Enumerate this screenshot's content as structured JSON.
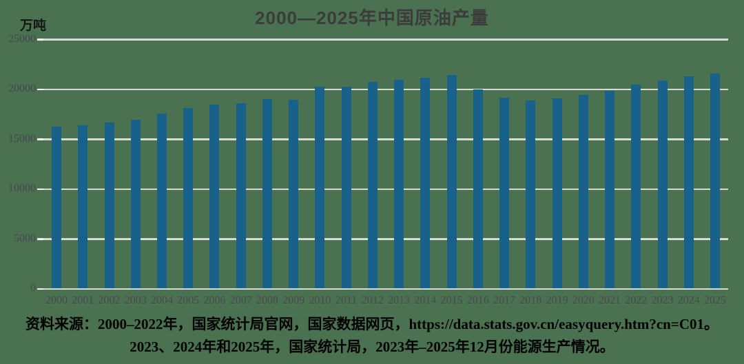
{
  "title": "2000—2025年中国原油产量",
  "unit_label": "万吨",
  "source": {
    "line1": "资料来源：2000–2022年，国家统计局官网，国家数据网页，https://data.stats.gov.cn/easyquery.htm?cn=C01。",
    "line2": "2023、2024年和2025年，国家统计局，2023年–2025年12月份能源生产情况。"
  },
  "colors": {
    "background": "#4A7150",
    "bar": "#18618A",
    "gridline": "#D8DCD8",
    "axis_tick": "#F4F6F4",
    "title_text": "#3C3C3C",
    "axis_text": "#474850",
    "source_text": "#000000"
  },
  "chart_data": {
    "type": "bar",
    "title": "2000—2025年中国原油产量",
    "ylabel": "万吨",
    "xlabel": "",
    "ylim": [
      0,
      25000
    ],
    "yticks": [
      0,
      5000,
      10000,
      15000,
      20000,
      25000
    ],
    "grid": true,
    "legend": false,
    "categories": [
      "2000",
      "2001",
      "2002",
      "2003",
      "2004",
      "2005",
      "2006",
      "2007",
      "2008",
      "2009",
      "2010",
      "2011",
      "2012",
      "2013",
      "2014",
      "2015",
      "2016",
      "2017",
      "2018",
      "2019",
      "2020",
      "2021",
      "2022",
      "2023",
      "2024",
      "2025"
    ],
    "values": [
      16300,
      16396,
      16700,
      16960,
      17587,
      18135,
      18477,
      18632,
      19043,
      18949,
      20301,
      20288,
      20748,
      20992,
      21143,
      21456,
      19969,
      19151,
      18911,
      19101,
      19477,
      19898,
      20472,
      20891,
      21284,
      21600
    ]
  }
}
